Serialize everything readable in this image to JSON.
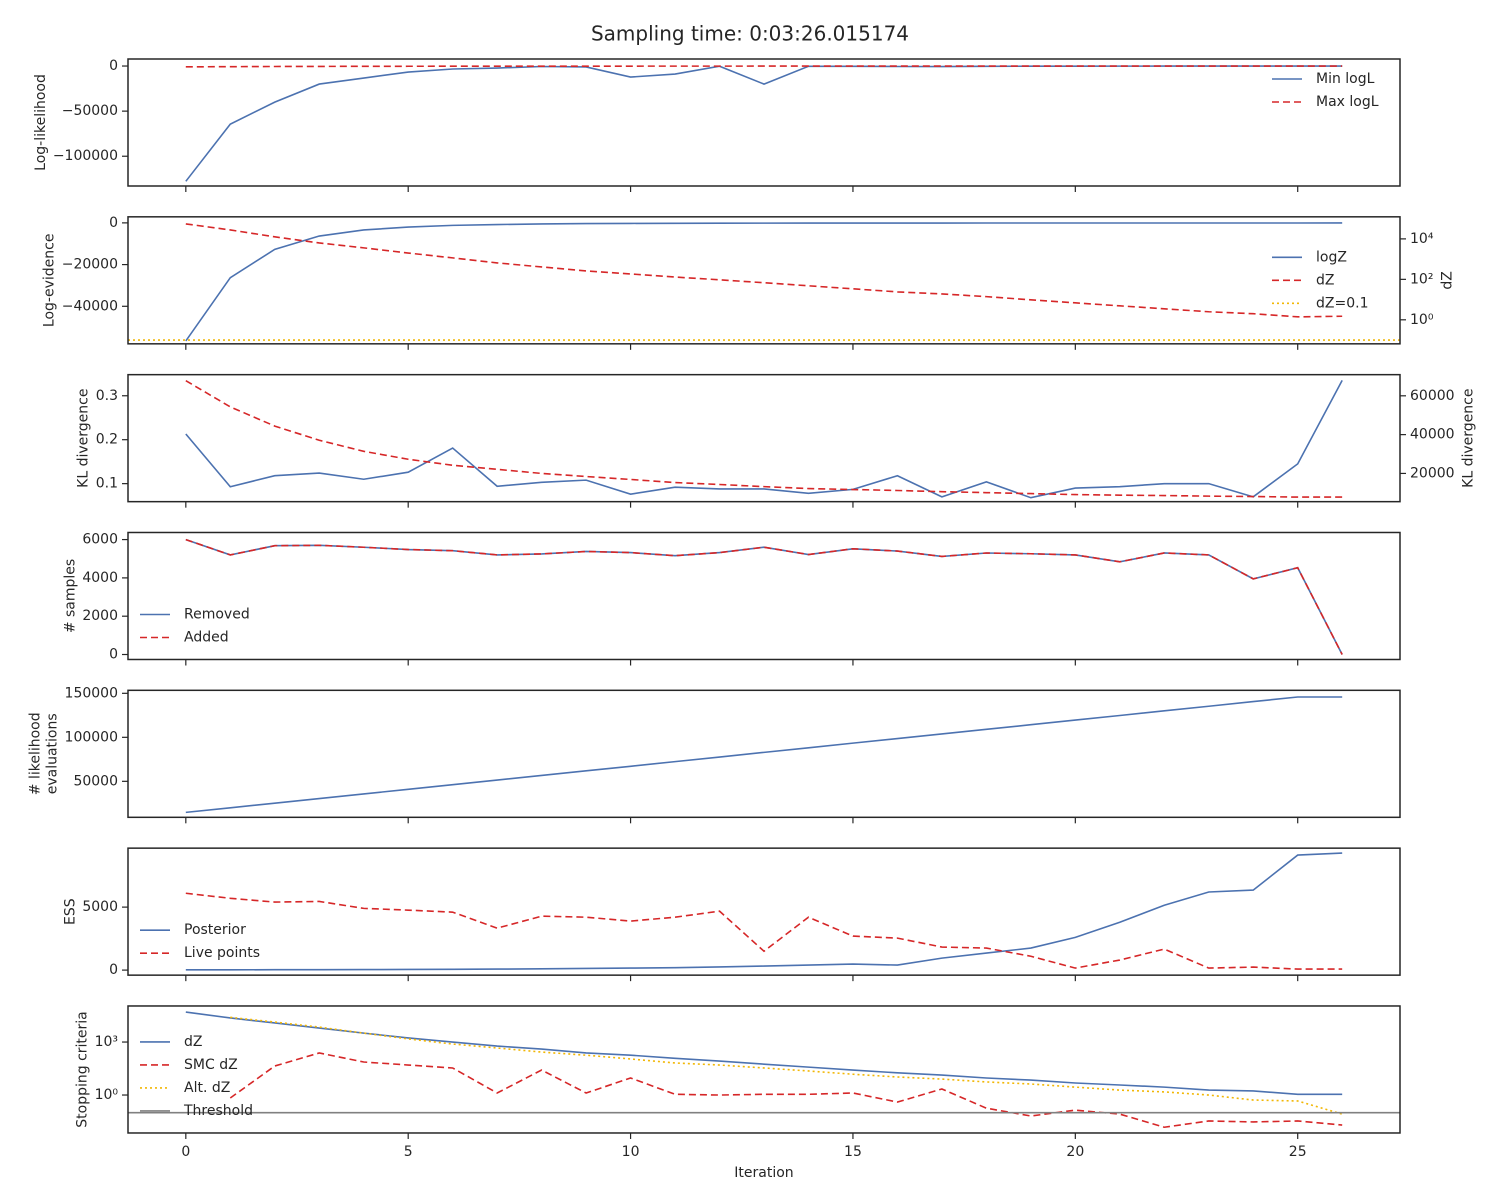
{
  "title": "Sampling time: 0:03:26.015174",
  "chart_data": [
    {
      "type": "line",
      "ylabel": [
        "Log-likelihood"
      ],
      "x": [
        0,
        1,
        2,
        3,
        4,
        5,
        6,
        7,
        8,
        9,
        10,
        11,
        12,
        13,
        14,
        15,
        16,
        17,
        18,
        19,
        20,
        21,
        22,
        23,
        24,
        25,
        26
      ],
      "xlim": [
        -1.3,
        27.3
      ],
      "xticks": [
        0,
        5,
        10,
        15,
        20,
        25
      ],
      "ylim": [
        -133000,
        7800
      ],
      "yticks": [
        {
          "value": -100000,
          "label": "−100000"
        },
        {
          "value": -50000,
          "label": "−50000"
        },
        0
      ],
      "legend": "upper right",
      "series": [
        {
          "name": "Min logL",
          "color": "#4c72b0",
          "linestyle": "solid",
          "values": [
            -127800,
            -64400,
            -40000,
            -20000,
            -13300,
            -6700,
            -3300,
            -2200,
            -500,
            -1000,
            -12200,
            -8900,
            -200,
            -20000,
            -300,
            -300,
            -500,
            -600,
            -300,
            -200,
            -150,
            -100,
            -80,
            -60,
            -50,
            -40,
            -30
          ]
        },
        {
          "name": "Max logL",
          "color": "#d62728",
          "linestyle": "dashed",
          "values": [
            -900,
            -700,
            -500,
            -400,
            -300,
            -250,
            -200,
            -180,
            -150,
            -130,
            -120,
            -100,
            -90,
            -80,
            -70,
            -60,
            -55,
            -50,
            -45,
            -40,
            -35,
            -30,
            -28,
            -25,
            -22,
            -20,
            -18
          ]
        }
      ]
    },
    {
      "type": "line",
      "ylabel": [
        "Log-evidence"
      ],
      "y2label": "dZ",
      "x": [
        0,
        1,
        2,
        3,
        4,
        5,
        6,
        7,
        8,
        9,
        10,
        11,
        12,
        13,
        14,
        15,
        16,
        17,
        18,
        19,
        20,
        21,
        22,
        23,
        24,
        25,
        26
      ],
      "xlim": [
        -1.3,
        27.3
      ],
      "xticks": [
        0,
        5,
        10,
        15,
        20,
        25
      ],
      "ylim": [
        -58000,
        2900
      ],
      "yticks": [
        {
          "value": -40000,
          "label": "−40000"
        },
        {
          "value": -20000,
          "label": "−20000"
        },
        0
      ],
      "y2lim": [
        0.065,
        123000
      ],
      "y2scale": "log",
      "y2ticks": [
        {
          "value": 1,
          "label": "10⁰"
        },
        {
          "value": 100,
          "label": "10²"
        },
        {
          "value": 10000,
          "label": "10⁴"
        }
      ],
      "legend": "center right",
      "series": [
        {
          "name": "logZ",
          "color": "#4c72b0",
          "linestyle": "solid",
          "values": [
            -56600,
            -26300,
            -12700,
            -6300,
            -3400,
            -2000,
            -1200,
            -800,
            -500,
            -350,
            -250,
            -200,
            -150,
            -120,
            -100,
            -90,
            -80,
            -70,
            -65,
            -60,
            -58,
            -56,
            -55,
            -54,
            -53,
            -52,
            -51
          ]
        },
        {
          "name": "dZ",
          "color": "#d62728",
          "linestyle": "dashed",
          "axis": "y2",
          "values": [
            55000,
            27700,
            12600,
            6300,
            3600,
            2000,
            1150,
            650,
            410,
            260,
            185,
            130,
            95,
            68,
            48,
            34,
            24,
            19,
            14,
            9.7,
            6.9,
            4.9,
            3.5,
            2.5,
            2.0,
            1.4,
            1.5
          ]
        },
        {
          "name": "dZ=0.1",
          "color": "#f2b705",
          "linestyle": "dotted",
          "axis": "y2",
          "hline": 0.1
        }
      ]
    },
    {
      "type": "line",
      "ylabel": [
        "KL divergence"
      ],
      "y2label": "KL divergence",
      "x": [
        0,
        1,
        2,
        3,
        4,
        5,
        6,
        7,
        8,
        9,
        10,
        11,
        12,
        13,
        14,
        15,
        16,
        17,
        18,
        19,
        20,
        21,
        22,
        23,
        24,
        25,
        26
      ],
      "xlim": [
        -1.3,
        27.3
      ],
      "xticks": [
        0,
        5,
        10,
        15,
        20,
        25
      ],
      "ylim": [
        0.059,
        0.348
      ],
      "yticks": [
        0.1,
        0.2,
        0.3
      ],
      "y2lim": [
        5450,
        70900
      ],
      "y2ticks": [
        20000,
        40000,
        60000
      ],
      "series": [
        {
          "color": "#4c72b0",
          "linestyle": "solid",
          "values": [
            0.213,
            0.093,
            0.118,
            0.124,
            0.11,
            0.126,
            0.181,
            0.094,
            0.103,
            0.108,
            0.076,
            0.092,
            0.088,
            0.088,
            0.078,
            0.087,
            0.118,
            0.07,
            0.104,
            0.068,
            0.09,
            0.093,
            0.1,
            0.1,
            0.07,
            0.145,
            0.335
          ]
        },
        {
          "color": "#d62728",
          "linestyle": "dashed",
          "axis": "y2",
          "values": [
            67800,
            54300,
            44400,
            37100,
            31400,
            27300,
            24200,
            22100,
            20000,
            18400,
            16900,
            15300,
            14300,
            13200,
            12200,
            11700,
            11200,
            10600,
            10100,
            9600,
            9100,
            8800,
            8600,
            8300,
            8100,
            7800,
            7800
          ]
        }
      ]
    },
    {
      "type": "line",
      "ylabel": [
        "# samples"
      ],
      "x": [
        0,
        1,
        2,
        3,
        4,
        5,
        6,
        7,
        8,
        9,
        10,
        11,
        12,
        13,
        14,
        15,
        16,
        17,
        18,
        19,
        20,
        21,
        22,
        23,
        24,
        25,
        26
      ],
      "xlim": [
        -1.3,
        27.3
      ],
      "xticks": [
        0,
        5,
        10,
        15,
        20,
        25
      ],
      "ylim": [
        -260,
        6370
      ],
      "yticks": [
        0,
        2000,
        4000,
        6000
      ],
      "legend": "lower left",
      "series": [
        {
          "name": "Removed",
          "color": "#4c72b0",
          "linestyle": "solid",
          "values": [
            6000,
            5200,
            5680,
            5700,
            5600,
            5480,
            5420,
            5200,
            5250,
            5380,
            5320,
            5160,
            5320,
            5600,
            5220,
            5520,
            5400,
            5120,
            5300,
            5260,
            5200,
            4840,
            5300,
            5200,
            3950,
            4530,
            0
          ]
        },
        {
          "name": "Added",
          "color": "#d62728",
          "linestyle": "dashed",
          "values": [
            6000,
            5200,
            5680,
            5700,
            5600,
            5480,
            5420,
            5200,
            5250,
            5380,
            5320,
            5160,
            5320,
            5600,
            5220,
            5520,
            5400,
            5120,
            5300,
            5260,
            5200,
            4840,
            5300,
            5200,
            3950,
            4530,
            0
          ]
        }
      ]
    },
    {
      "type": "line",
      "ylabel": [
        "# likelihood",
        "evaluations"
      ],
      "x": [
        0,
        1,
        2,
        3,
        4,
        5,
        6,
        7,
        8,
        9,
        10,
        11,
        12,
        13,
        14,
        15,
        16,
        17,
        18,
        19,
        20,
        21,
        22,
        23,
        24,
        25,
        26
      ],
      "xlim": [
        -1.3,
        27.3
      ],
      "xticks": [
        0,
        5,
        10,
        15,
        20,
        25
      ],
      "ylim": [
        9100,
        153400
      ],
      "yticks": [
        50000,
        100000,
        150000
      ],
      "series": [
        {
          "color": "#4c72b0",
          "linestyle": "solid",
          "values": [
            14700,
            19900,
            25200,
            30400,
            35700,
            40900,
            46200,
            51400,
            56700,
            61900,
            67100,
            72400,
            77600,
            82900,
            88100,
            93400,
            98600,
            103800,
            109100,
            114300,
            119600,
            124800,
            130100,
            135300,
            140600,
            145800,
            145800
          ]
        }
      ]
    },
    {
      "type": "line",
      "ylabel": [
        "ESS"
      ],
      "x": [
        0,
        1,
        2,
        3,
        4,
        5,
        6,
        7,
        8,
        9,
        10,
        11,
        12,
        13,
        14,
        15,
        16,
        17,
        18,
        19,
        20,
        21,
        22,
        23,
        24,
        25,
        26
      ],
      "xlim": [
        -1.3,
        27.3
      ],
      "xticks": [
        0,
        5,
        10,
        15,
        20,
        25
      ],
      "ylim": [
        -400,
        9680
      ],
      "yticks": [
        0,
        5000
      ],
      "legend": "lower left",
      "series": [
        {
          "name": "Posterior",
          "color": "#4c72b0",
          "linestyle": "solid",
          "values": [
            20,
            25,
            30,
            35,
            40,
            50,
            60,
            80,
            100,
            130,
            160,
            190,
            250,
            320,
            400,
            480,
            400,
            950,
            1350,
            1750,
            2600,
            3800,
            5150,
            6200,
            6350,
            9130,
            9290
          ]
        },
        {
          "name": "Live points",
          "color": "#d62728",
          "linestyle": "dashed",
          "values": [
            6100,
            5700,
            5400,
            5450,
            4900,
            4760,
            4600,
            3330,
            4280,
            4200,
            3890,
            4200,
            4680,
            1500,
            4200,
            2700,
            2540,
            1830,
            1750,
            1100,
            160,
            800,
            1670,
            160,
            240,
            80,
            80
          ]
        }
      ]
    },
    {
      "type": "line",
      "ylabel": [
        "Stopping criteria"
      ],
      "xlabel": "Iteration",
      "x": [
        0,
        1,
        2,
        3,
        4,
        5,
        6,
        7,
        8,
        9,
        10,
        11,
        12,
        13,
        14,
        15,
        16,
        17,
        18,
        19,
        20,
        21,
        22,
        23,
        24,
        25,
        26
      ],
      "xlim": [
        -1.3,
        27.3
      ],
      "xticks": [
        0,
        5,
        10,
        15,
        20,
        25
      ],
      "ylim": [
        0.0071,
        110000
      ],
      "yscale": "log",
      "yticks": [
        {
          "value": 1,
          "label": "10⁰"
        },
        {
          "value": 1000,
          "label": "10³"
        }
      ],
      "legend": "lower left",
      "series": [
        {
          "name": "dZ",
          "color": "#4c72b0",
          "linestyle": "solid",
          "values": [
            50000,
            23000,
            12000,
            6200,
            3200,
            1700,
            1000,
            590,
            400,
            240,
            180,
            120,
            84,
            56,
            38,
            26,
            18,
            13.5,
            9.2,
            7,
            4.8,
            3.7,
            2.8,
            1.9,
            1.7,
            1.1,
            1.1
          ]
        },
        {
          "name": "SMC dZ",
          "color": "#d62728",
          "linestyle": "dashed",
          "values": [
            null,
            0.68,
            44,
            240,
            74,
            50,
            34,
            1.3,
            26,
            1.3,
            9.2,
            1.1,
            1.0,
            1.1,
            1.1,
            1.3,
            0.4,
            2.2,
            0.18,
            0.065,
            0.14,
            0.083,
            0.015,
            0.034,
            0.03,
            0.034,
            0.02
          ]
        },
        {
          "name": "Alt. dZ",
          "color": "#f2b705",
          "linestyle": "dotted",
          "values": [
            null,
            25000,
            13500,
            7000,
            3200,
            1500,
            770,
            460,
            270,
            180,
            110,
            65,
            50,
            34,
            23,
            15,
            10.5,
            8,
            5.5,
            4.2,
            2.8,
            1.9,
            1.5,
            1.0,
            0.52,
            0.46,
            0.083
          ]
        },
        {
          "name": "Threshold",
          "color": "#808080",
          "linestyle": "solid",
          "hline": 0.1
        }
      ]
    }
  ]
}
